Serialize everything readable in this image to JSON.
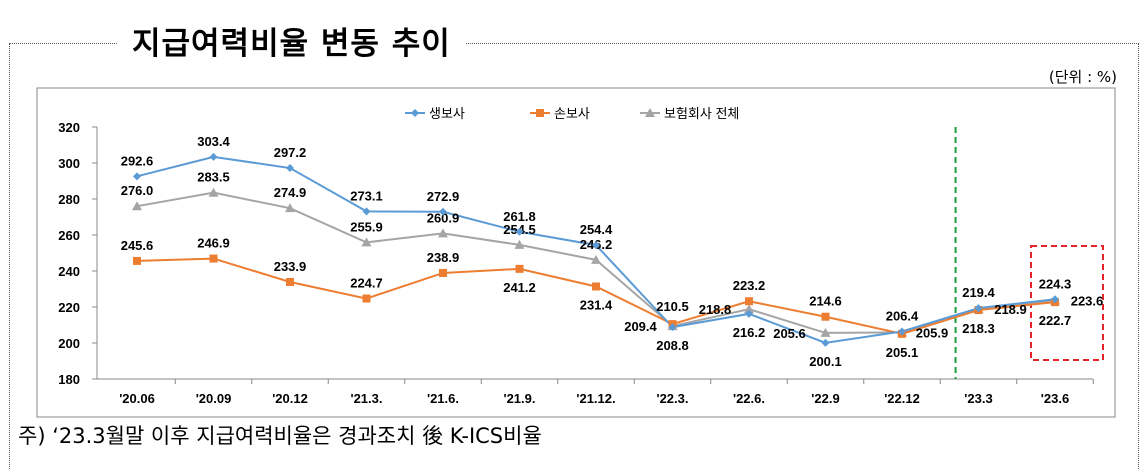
{
  "title": "지급여력비율 변동 추이",
  "unit": "(단위 : %)",
  "note": "주) ‘23.3월말 이후 지급여력비율은 경과조치 後 K-ICS비율",
  "chart_data": {
    "type": "line",
    "categories": [
      "'20.06",
      "'20.09",
      "'20.12",
      "'21.3.",
      "'21.6.",
      "'21.9.",
      "'21.12.",
      "'22.3.",
      "'22.6.",
      "'22.9",
      "'22.12",
      "'23.3",
      "'23.6"
    ],
    "yticks": [
      180,
      200,
      220,
      240,
      260,
      280,
      300,
      320
    ],
    "ylim": [
      180,
      320
    ],
    "legend_position": "top",
    "series": [
      {
        "name": "생보사",
        "color": "#5B9BD5",
        "marker": "diamond",
        "values": [
          292.6,
          303.4,
          297.2,
          273.1,
          272.9,
          261.8,
          254.4,
          208.8,
          216.2,
          200.1,
          206.4,
          219.4,
          224.3
        ]
      },
      {
        "name": "손보사",
        "color": "#ED7D31",
        "marker": "square",
        "values": [
          245.6,
          246.9,
          233.9,
          224.7,
          238.9,
          241.2,
          231.4,
          210.5,
          223.2,
          214.6,
          205.1,
          218.3,
          222.7
        ]
      },
      {
        "name": "보험회사 전체",
        "color": "#A5A5A5",
        "marker": "triangle",
        "values": [
          276.0,
          283.5,
          274.9,
          255.9,
          260.9,
          254.5,
          246.2,
          209.4,
          218.8,
          205.6,
          205.9,
          218.9,
          223.6
        ]
      }
    ],
    "divider_after": "'22.12",
    "divider_color": "#1E9E3E",
    "highlight_category": "'23.6",
    "highlight_color": "#E0262B"
  }
}
